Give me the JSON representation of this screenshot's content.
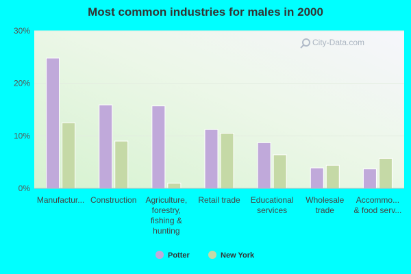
{
  "title": "Most common industries for males in 2000",
  "watermark": "City-Data.com",
  "colors": {
    "background": "#00ffff",
    "series_potter": "#c0a9da",
    "series_newyork": "#c5d9a6"
  },
  "chart_data": {
    "type": "bar",
    "title": "Most common industries for males in 2000",
    "xlabel": "",
    "ylabel": "",
    "ylim": [
      0,
      30
    ],
    "yticks": [
      "0%",
      "10%",
      "20%",
      "30%"
    ],
    "ytick_values": [
      0,
      10,
      20,
      30
    ],
    "grid": true,
    "legend_position": "bottom",
    "categories": [
      [
        "Manufactur..."
      ],
      [
        "Construction"
      ],
      [
        "Agriculture,",
        "forestry,",
        "fishing &",
        "hunting"
      ],
      [
        "Retail trade"
      ],
      [
        "Educational",
        "services"
      ],
      [
        "Wholesale",
        "trade"
      ],
      [
        "Accommo...",
        "& food serv..."
      ]
    ],
    "series": [
      {
        "name": "Potter",
        "color": "#c0a9da",
        "values": [
          24.8,
          15.9,
          15.7,
          11.2,
          8.7,
          3.9,
          3.7
        ]
      },
      {
        "name": "New York",
        "color": "#c5d9a6",
        "values": [
          12.5,
          9.0,
          1.0,
          10.5,
          6.4,
          4.4,
          5.7
        ]
      }
    ]
  }
}
